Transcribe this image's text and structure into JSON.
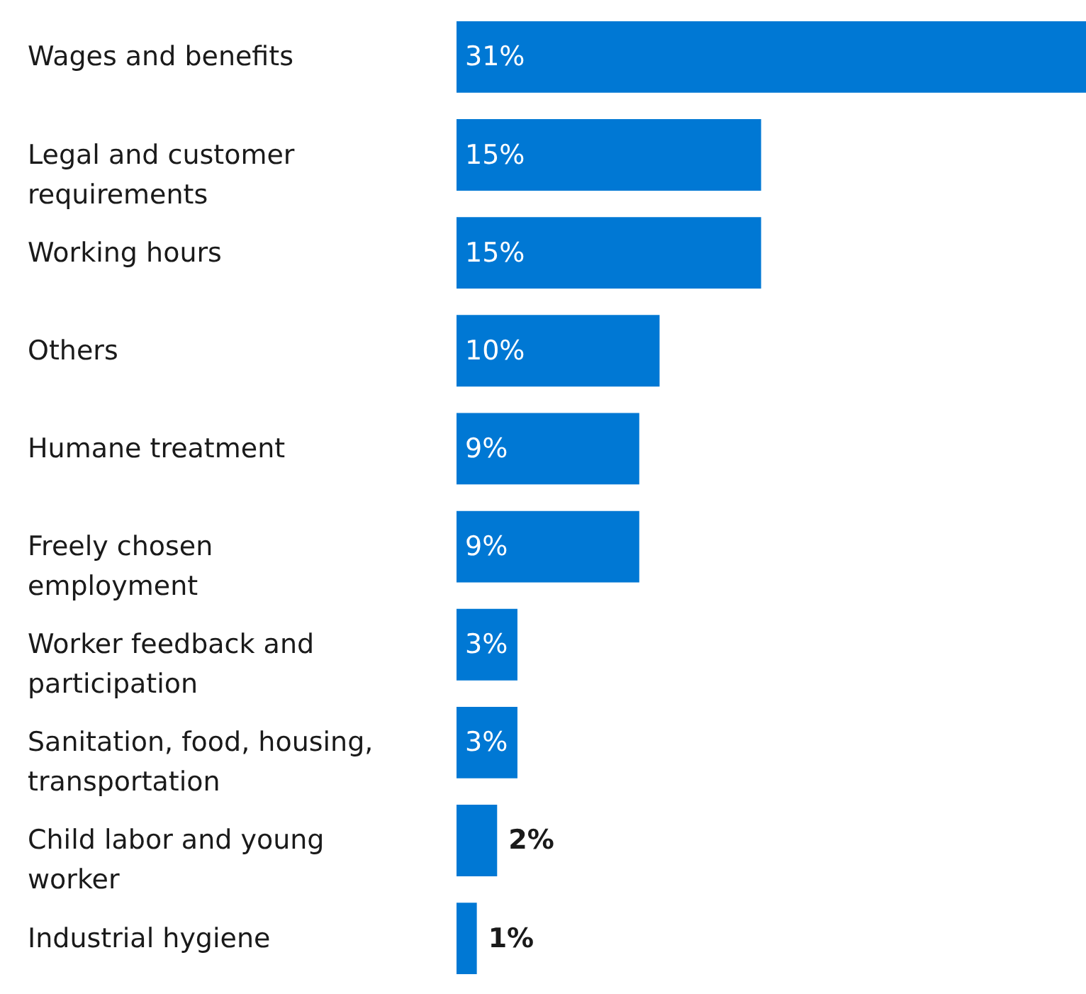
{
  "chart_data": {
    "type": "bar",
    "orientation": "horizontal",
    "categories": [
      "Wages and benefits",
      "Legal and customer requirements",
      "Working hours",
      "Others",
      "Humane treatment",
      "Freely chosen employment",
      "Worker feedback and participation",
      "Sanitation, food, housing, transportation",
      "Child labor and young worker",
      "Industrial hygiene"
    ],
    "values": [
      31,
      15,
      15,
      10,
      9,
      9,
      3,
      3,
      2,
      1
    ],
    "value_labels": [
      "31%",
      "15%",
      "15%",
      "10%",
      "9%",
      "9%",
      "3%",
      "3%",
      "2%",
      "1%"
    ],
    "color": "#0078d4"
  }
}
